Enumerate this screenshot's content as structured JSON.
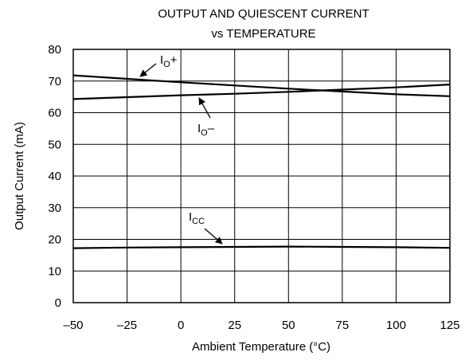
{
  "chart_data": {
    "type": "line",
    "title": [
      "OUTPUT AND QUIESCENT CURRENT",
      "vs TEMPERATURE"
    ],
    "xlabel": "Ambient Temperature (°C)",
    "ylabel": "Output Current (mA)",
    "xlim": [
      -50,
      125
    ],
    "ylim": [
      0,
      80
    ],
    "x_ticks": [
      -50,
      -25,
      0,
      25,
      50,
      75,
      100,
      125
    ],
    "x_tick_labels": [
      "–50",
      "–25",
      "0",
      "25",
      "50",
      "75",
      "100",
      "125"
    ],
    "y_ticks": [
      0,
      10,
      20,
      30,
      40,
      50,
      60,
      70,
      80
    ],
    "y_tick_labels": [
      "0",
      "10",
      "20",
      "30",
      "40",
      "50",
      "60",
      "70",
      "80"
    ],
    "grid": true,
    "series": [
      {
        "key": "io-plus",
        "label_main": "I",
        "label_sub": "O",
        "label_suffix": "+",
        "x": [
          -50,
          -25,
          0,
          25,
          50,
          75,
          100,
          125
        ],
        "values": [
          71.8,
          70.7,
          69.6,
          68.6,
          67.6,
          66.7,
          65.8,
          65.2
        ]
      },
      {
        "key": "io-minus",
        "label_main": "I",
        "label_sub": "O",
        "label_suffix": "–",
        "x": [
          -50,
          -25,
          0,
          25,
          50,
          75,
          100,
          125
        ],
        "values": [
          64.3,
          64.9,
          65.5,
          66.0,
          66.6,
          67.3,
          68.0,
          68.9
        ]
      },
      {
        "key": "icc",
        "label_main": "I",
        "label_sub": "CC",
        "label_suffix": "",
        "x": [
          -50,
          -25,
          0,
          25,
          50,
          75,
          100,
          125
        ],
        "values": [
          17.2,
          17.4,
          17.5,
          17.6,
          17.7,
          17.6,
          17.5,
          17.3
        ]
      }
    ]
  }
}
